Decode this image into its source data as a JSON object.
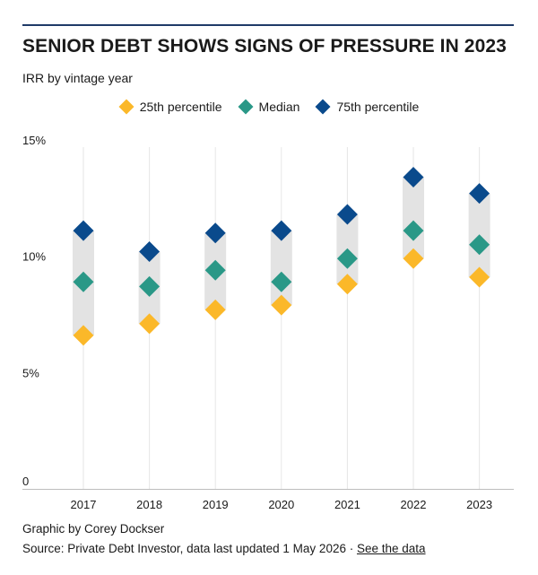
{
  "header": {
    "title": "SENIOR DEBT SHOWS SIGNS OF PRESSURE IN 2023",
    "subtitle": "IRR by vintage year"
  },
  "footer": {
    "credit": "Graphic by Corey Dockser",
    "source": "Source: Private Debt Investor, data last updated 1 May 2026 · ",
    "link_label": "See the data"
  },
  "colors": {
    "p25": "#fbb829",
    "median": "#2a9887",
    "p75": "#0a4a8c",
    "band": "#e3e3e3",
    "gridline": "#e6e6e6"
  },
  "chart_data": {
    "type": "scatter",
    "categories": [
      "2017",
      "2018",
      "2019",
      "2020",
      "2021",
      "2022",
      "2023"
    ],
    "series": [
      {
        "name": "25th percentile",
        "key": "p25",
        "values": [
          6.6,
          7.1,
          7.7,
          7.9,
          8.8,
          9.9,
          9.1
        ]
      },
      {
        "name": "Median",
        "key": "median",
        "values": [
          8.9,
          8.7,
          9.4,
          8.9,
          9.9,
          11.1,
          10.5
        ]
      },
      {
        "name": "75th percentile",
        "key": "p75",
        "values": [
          11.1,
          10.2,
          11.0,
          11.1,
          11.8,
          13.4,
          12.7
        ]
      }
    ],
    "ylim": [
      0,
      15
    ],
    "yticks": [
      {
        "value": 0,
        "label": "0"
      },
      {
        "value": 5,
        "label": "5%"
      },
      {
        "value": 10,
        "label": "10%"
      },
      {
        "value": 15,
        "label": "15%"
      }
    ],
    "legend_position": "top-center",
    "grid": "vertical"
  }
}
